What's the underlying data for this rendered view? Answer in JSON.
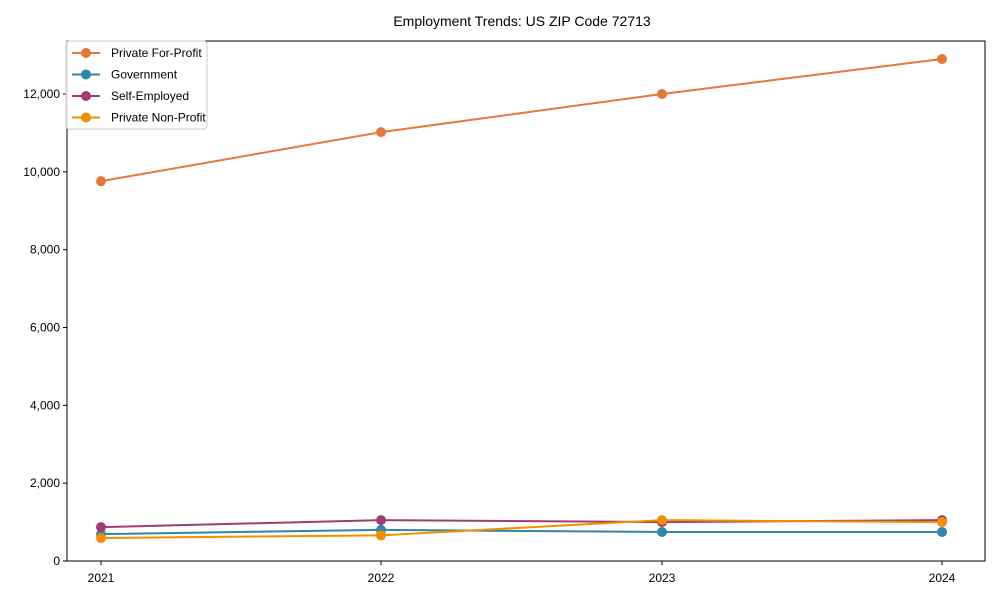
{
  "chart_data": {
    "type": "line",
    "title": "Employment Trends: US ZIP Code 72713",
    "xlabel": "",
    "ylabel": "",
    "x": [
      "2021",
      "2022",
      "2023",
      "2024"
    ],
    "ylim": [
      0,
      13400
    ],
    "yticks": [
      0,
      2000,
      4000,
      6000,
      8000,
      10000,
      12000
    ],
    "ytick_labels": [
      "0",
      "2,000",
      "4,000",
      "6,000",
      "8,000",
      "10,000",
      "12,000"
    ],
    "grid": false,
    "legend_position": "upper left",
    "series": [
      {
        "name": "Private For-Profit",
        "color": "#E8773A",
        "values": [
          9760,
          11020,
          12000,
          12900
        ]
      },
      {
        "name": "Government",
        "color": "#2E86AB",
        "values": [
          690,
          800,
          745,
          745
        ]
      },
      {
        "name": "Self-Employed",
        "color": "#A23B72",
        "values": [
          870,
          1050,
          1000,
          1050
        ]
      },
      {
        "name": "Private Non-Profit",
        "color": "#F18F01",
        "values": [
          590,
          660,
          1050,
          1000
        ]
      }
    ]
  }
}
